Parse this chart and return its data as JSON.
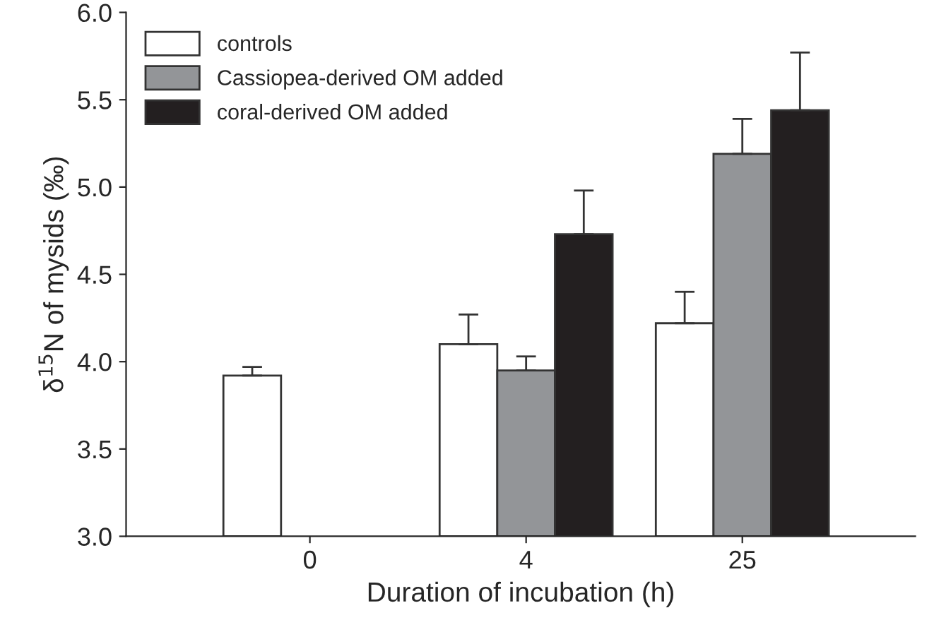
{
  "chart_data": {
    "type": "bar",
    "xlabel": "Duration of incubation (h)",
    "ylabel": "δ$^{15}$N of mysids (‰)",
    "categories": [
      "0",
      "4",
      "25"
    ],
    "series": [
      {
        "name": "controls",
        "color": "#ffffff",
        "values": [
          3.92,
          4.1,
          4.22
        ],
        "errors": [
          0.05,
          0.17,
          0.18
        ]
      },
      {
        "name": "Cassiopea-derived OM added",
        "color": "#939598",
        "values": [
          null,
          3.95,
          5.19
        ],
        "errors": [
          null,
          0.08,
          0.2
        ]
      },
      {
        "name": "coral-derived OM added",
        "color": "#231f20",
        "values": [
          null,
          4.73,
          5.44
        ],
        "errors": [
          null,
          0.25,
          0.33
        ]
      }
    ],
    "ylim": [
      3.0,
      6.0
    ],
    "yticks": [
      {
        "value": 3.0,
        "label": "3.0"
      },
      {
        "value": 3.5,
        "label": "3.5"
      },
      {
        "value": 4.0,
        "label": "4.0"
      },
      {
        "value": 4.5,
        "label": "4.5"
      },
      {
        "value": 5.0,
        "label": "5.0"
      },
      {
        "value": 5.5,
        "label": "5.5"
      },
      {
        "value": 6.0,
        "label": "6.0"
      }
    ],
    "legend": "top left",
    "grid": false
  }
}
